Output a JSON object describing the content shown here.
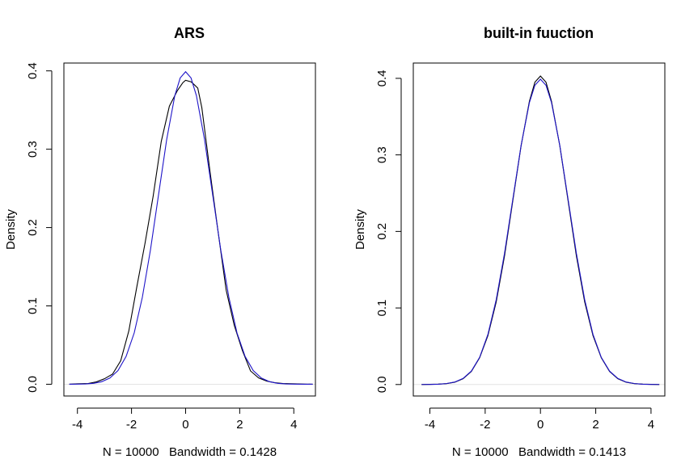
{
  "chart_data": [
    {
      "type": "line",
      "title": "ARS",
      "xlabel": "N = 10000   Bandwidth = 0.1428",
      "ylabel": "Density",
      "xlim": [
        -4.5,
        4.8
      ],
      "ylim": [
        -0.015,
        0.41
      ],
      "xticks": [
        -4,
        -2,
        0,
        2,
        4
      ],
      "yticks": [
        0.0,
        0.1,
        0.2,
        0.3,
        0.4
      ],
      "xtick_labels": [
        "-4",
        "-2",
        "0",
        "2",
        "4"
      ],
      "ytick_labels": [
        "0.0",
        "0.1",
        "0.2",
        "0.3",
        "0.4"
      ],
      "grid": false,
      "series": [
        {
          "color": "#000000",
          "x": [
            -4.3,
            -4.0,
            -3.6,
            -3.3,
            -3.0,
            -2.7,
            -2.4,
            -2.1,
            -1.8,
            -1.5,
            -1.2,
            -0.9,
            -0.6,
            -0.3,
            -0.1,
            0.0,
            0.2,
            0.3,
            0.45,
            0.6,
            0.9,
            1.2,
            1.5,
            1.8,
            2.1,
            2.4,
            2.7,
            3.0,
            3.3,
            3.6,
            4.0,
            4.4,
            4.7
          ],
          "y": [
            0.0,
            0.0005,
            0.001,
            0.003,
            0.007,
            0.013,
            0.03,
            0.068,
            0.125,
            0.18,
            0.24,
            0.31,
            0.355,
            0.375,
            0.385,
            0.388,
            0.386,
            0.383,
            0.378,
            0.353,
            0.272,
            0.195,
            0.12,
            0.075,
            0.043,
            0.017,
            0.008,
            0.004,
            0.002,
            0.001,
            0.0005,
            0.0002,
            0.0
          ]
        },
        {
          "color": "#1e14c8",
          "x": [
            -4.3,
            -4.0,
            -3.7,
            -3.4,
            -3.1,
            -2.8,
            -2.5,
            -2.2,
            -1.9,
            -1.6,
            -1.3,
            -1.0,
            -0.7,
            -0.4,
            -0.2,
            0.0,
            0.2,
            0.4,
            0.7,
            1.0,
            1.3,
            1.6,
            1.9,
            2.2,
            2.5,
            2.8,
            3.1,
            3.4,
            3.7,
            4.0,
            4.4,
            4.7
          ],
          "y": [
            4e-05,
            0.00013,
            0.00042,
            0.00123,
            0.00327,
            0.00792,
            0.0175,
            0.0355,
            0.0656,
            0.1109,
            0.1714,
            0.242,
            0.3123,
            0.3683,
            0.391,
            0.3989,
            0.391,
            0.3683,
            0.3123,
            0.242,
            0.1714,
            0.1109,
            0.0656,
            0.0355,
            0.0175,
            0.00792,
            0.00327,
            0.00123,
            0.00042,
            0.00013,
            2e-05,
            0.0
          ]
        }
      ]
    },
    {
      "type": "line",
      "title": "built-in fuuction",
      "xlabel": "N = 10000   Bandwidth = 0.1413",
      "ylabel": "Density",
      "xlim": [
        -4.6,
        4.5
      ],
      "ylim": [
        -0.015,
        0.42
      ],
      "xticks": [
        -4,
        -2,
        0,
        2,
        4
      ],
      "yticks": [
        0.0,
        0.1,
        0.2,
        0.3,
        0.4
      ],
      "xtick_labels": [
        "-4",
        "-2",
        "0",
        "2",
        "4"
      ],
      "ytick_labels": [
        "0.0",
        "0.1",
        "0.2",
        "0.3",
        "0.4"
      ],
      "grid": false,
      "series": [
        {
          "color": "#000000",
          "x": [
            -4.3,
            -4.0,
            -3.7,
            -3.4,
            -3.1,
            -2.8,
            -2.5,
            -2.2,
            -1.9,
            -1.6,
            -1.3,
            -1.0,
            -0.7,
            -0.4,
            -0.2,
            0.0,
            0.2,
            0.4,
            0.7,
            1.0,
            1.3,
            1.6,
            1.9,
            2.2,
            2.5,
            2.8,
            3.1,
            3.4,
            3.7,
            4.0,
            4.3
          ],
          "y": [
            0.0,
            0.0002,
            0.0005,
            0.0012,
            0.003,
            0.0075,
            0.017,
            0.035,
            0.064,
            0.108,
            0.168,
            0.24,
            0.312,
            0.37,
            0.395,
            0.403,
            0.395,
            0.37,
            0.312,
            0.24,
            0.168,
            0.108,
            0.064,
            0.035,
            0.017,
            0.0075,
            0.003,
            0.0012,
            0.0005,
            0.0002,
            0.0
          ]
        },
        {
          "color": "#1e14c8",
          "x": [
            -4.3,
            -4.0,
            -3.7,
            -3.4,
            -3.1,
            -2.8,
            -2.5,
            -2.2,
            -1.9,
            -1.6,
            -1.3,
            -1.0,
            -0.7,
            -0.4,
            -0.2,
            0.0,
            0.2,
            0.4,
            0.7,
            1.0,
            1.3,
            1.6,
            1.9,
            2.2,
            2.5,
            2.8,
            3.1,
            3.4,
            3.7,
            4.0,
            4.3
          ],
          "y": [
            4e-05,
            0.00013,
            0.00042,
            0.00123,
            0.00327,
            0.00792,
            0.0175,
            0.0355,
            0.0656,
            0.1109,
            0.1714,
            0.242,
            0.3123,
            0.3683,
            0.391,
            0.3989,
            0.391,
            0.3683,
            0.3123,
            0.242,
            0.1714,
            0.1109,
            0.0656,
            0.0355,
            0.0175,
            0.00792,
            0.00327,
            0.00123,
            0.00042,
            0.00013,
            4e-05
          ]
        }
      ]
    }
  ]
}
